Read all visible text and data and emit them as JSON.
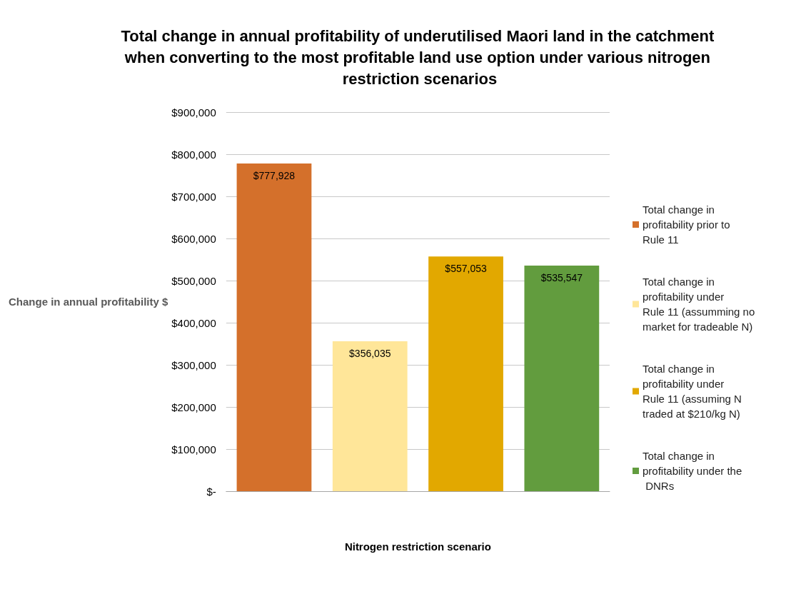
{
  "chart_data": {
    "type": "bar",
    "title": "Total change in annual profitability of underutilised Maori land in the catchment when converting to the most profitable land use option under various nitrogen restriction scenarios",
    "xlabel": "Nitrogen restriction scenario",
    "ylabel": "Change in annual profitability $",
    "categories": [
      null,
      null,
      null,
      null
    ],
    "series": [
      {
        "name": "Total change in profitability prior to Rule 11",
        "color": "#d4702b",
        "values": [
          777928,
          null,
          null,
          null
        ],
        "value_labels": [
          "$777,928",
          null,
          null,
          null
        ]
      },
      {
        "name": "Total change in profitability under Rule 11 (assumming no market for tradeable N)",
        "color": "#ffe699",
        "values": [
          null,
          356035,
          null,
          null
        ],
        "value_labels": [
          null,
          "$356,035",
          null,
          null
        ]
      },
      {
        "name": "Total change in profitability under Rule 11 (assuming N traded at $210/kg N)",
        "color": "#e2a800",
        "values": [
          null,
          null,
          557053,
          null
        ],
        "value_labels": [
          null,
          null,
          "$557,053",
          null
        ]
      },
      {
        "name": "Total change in profitability under the DNRs",
        "color": "#629c3e",
        "values": [
          null,
          null,
          null,
          535547
        ],
        "value_labels": [
          null,
          null,
          null,
          "$535,547"
        ]
      }
    ],
    "ylim": [
      0,
      900000
    ],
    "yticks": [
      {
        "value": 0,
        "label": "$-"
      },
      {
        "value": 100000,
        "label": "$100,000"
      },
      {
        "value": 200000,
        "label": "$200,000"
      },
      {
        "value": 300000,
        "label": "$300,000"
      },
      {
        "value": 400000,
        "label": "$400,000"
      },
      {
        "value": 500000,
        "label": "$500,000"
      },
      {
        "value": 600000,
        "label": "$600,000"
      },
      {
        "value": 700000,
        "label": "$700,000"
      },
      {
        "value": 800000,
        "label": "$800,000"
      },
      {
        "value": 900000,
        "label": "$900,000"
      }
    ],
    "grid": "y",
    "legend": "right"
  }
}
